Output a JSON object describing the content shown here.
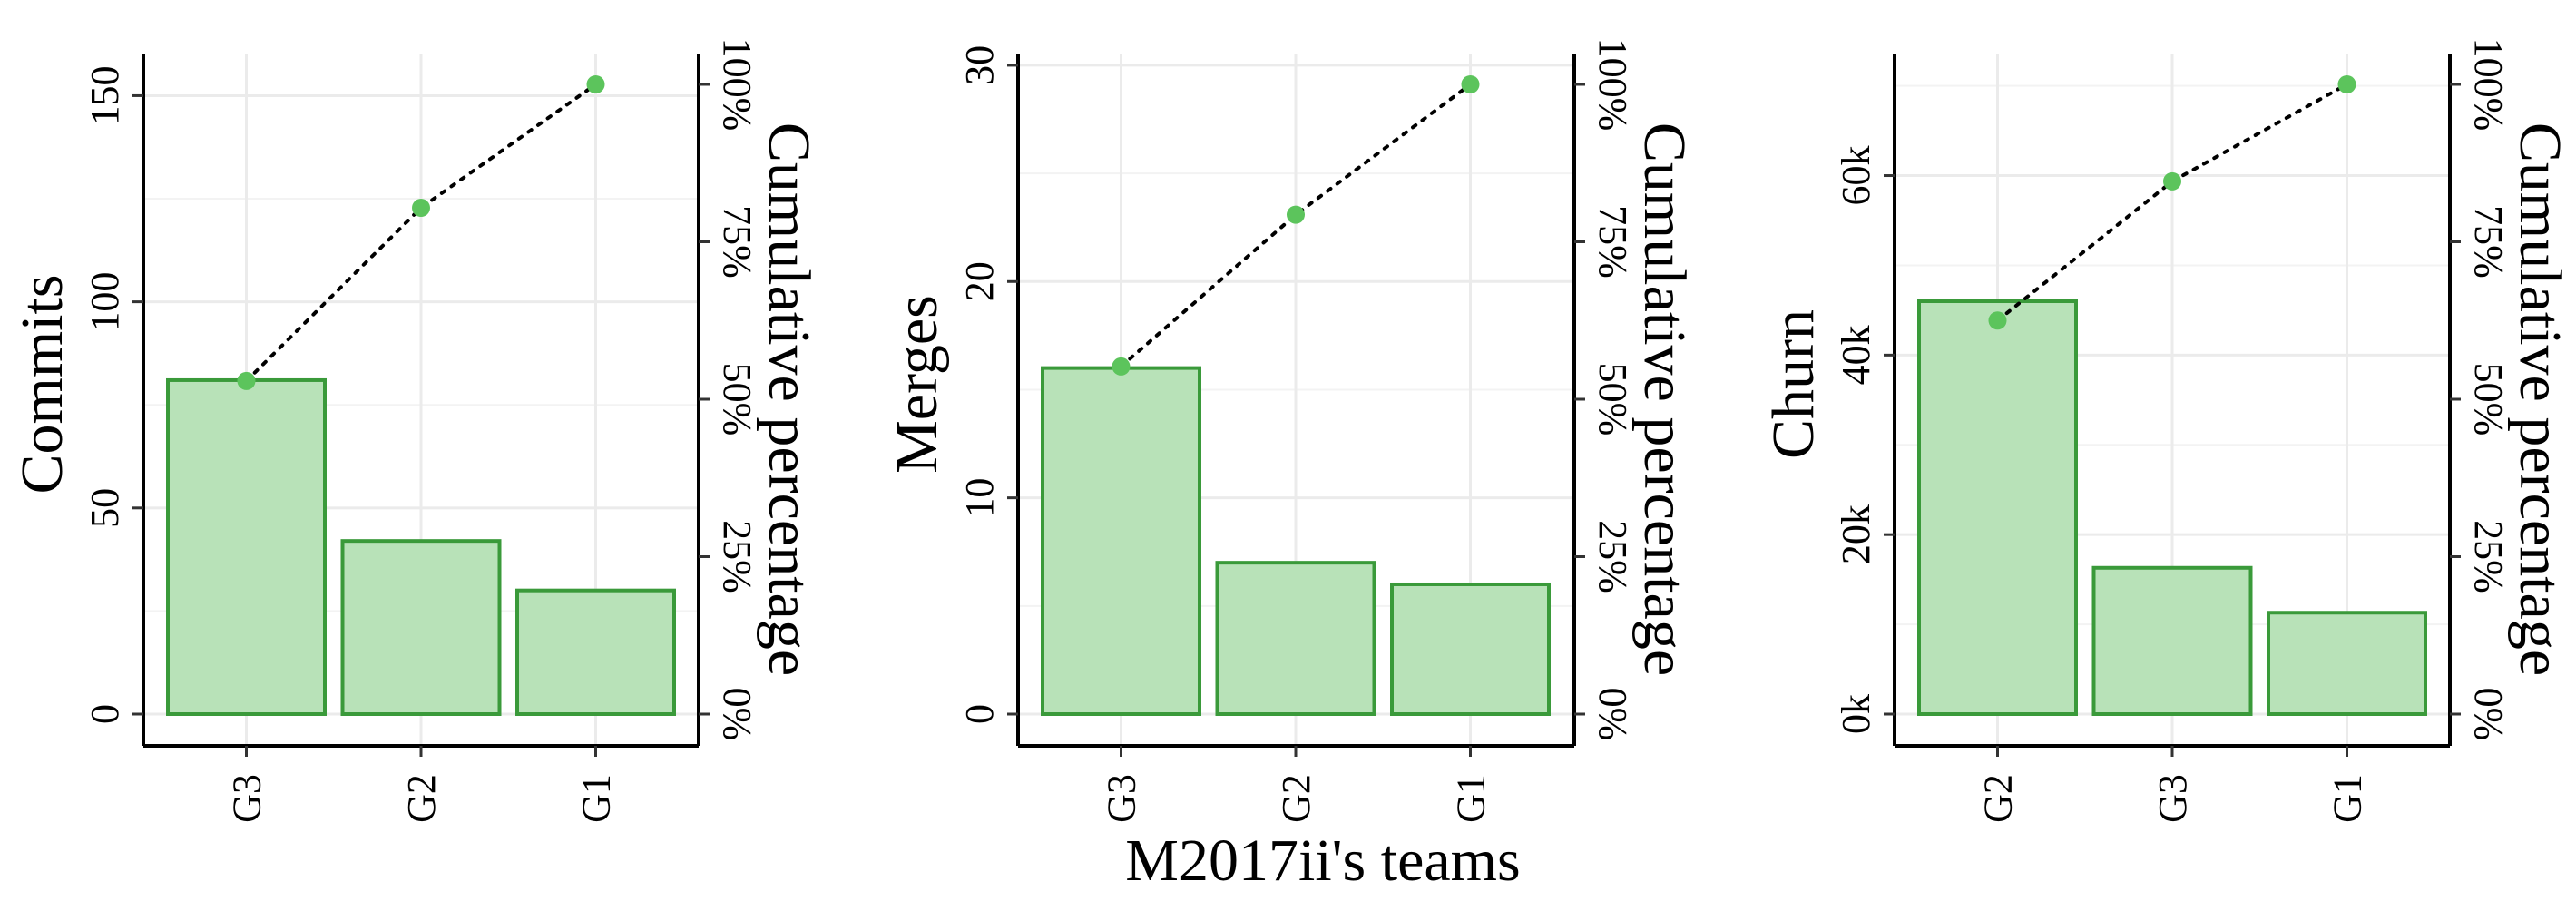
{
  "figure": {
    "xlabel": "M2017ii's teams"
  },
  "colors": {
    "bar_fill": "#b8e2b8",
    "bar_stroke": "#3a9a3a",
    "point": "#5cc45c",
    "line": "#000000",
    "grid": "#ebebeb"
  },
  "chart_data": [
    {
      "type": "bar",
      "ylabel": "Commits",
      "y2label": "Cumulative percentage",
      "categories": [
        "G3",
        "G2",
        "G1"
      ],
      "values": [
        81,
        42,
        30
      ],
      "cumulative_pct": [
        52.9,
        80.4,
        100
      ],
      "ylim": [
        0,
        160
      ],
      "yticks": [
        0,
        50,
        100,
        150
      ],
      "ytick_labels": [
        "0",
        "50",
        "100",
        "150"
      ],
      "y2ticks": [
        "0%",
        "25%",
        "50%",
        "75%",
        "100%"
      ]
    },
    {
      "type": "bar",
      "ylabel": "Merges",
      "y2label": "Cumulative percentage",
      "categories": [
        "G3",
        "G2",
        "G1"
      ],
      "values": [
        16,
        7,
        6
      ],
      "cumulative_pct": [
        55.2,
        79.3,
        100
      ],
      "ylim": [
        0,
        30.5
      ],
      "yticks": [
        0,
        10,
        20,
        30
      ],
      "ytick_labels": [
        "0",
        "10",
        "20",
        "30"
      ],
      "y2ticks": [
        "0%",
        "25%",
        "50%",
        "75%",
        "100%"
      ]
    },
    {
      "type": "bar",
      "ylabel": "Churn",
      "y2label": "Cumulative percentage",
      "categories": [
        "G2",
        "G3",
        "G1"
      ],
      "values": [
        46000,
        16300,
        11300
      ],
      "cumulative_pct": [
        62.5,
        84.6,
        100
      ],
      "ylim": [
        0,
        73500
      ],
      "yticks": [
        0,
        20000,
        40000,
        60000
      ],
      "ytick_labels": [
        "0k",
        "20k",
        "40k",
        "60k"
      ],
      "y2ticks": [
        "0%",
        "25%",
        "50%",
        "75%",
        "100%"
      ]
    }
  ]
}
